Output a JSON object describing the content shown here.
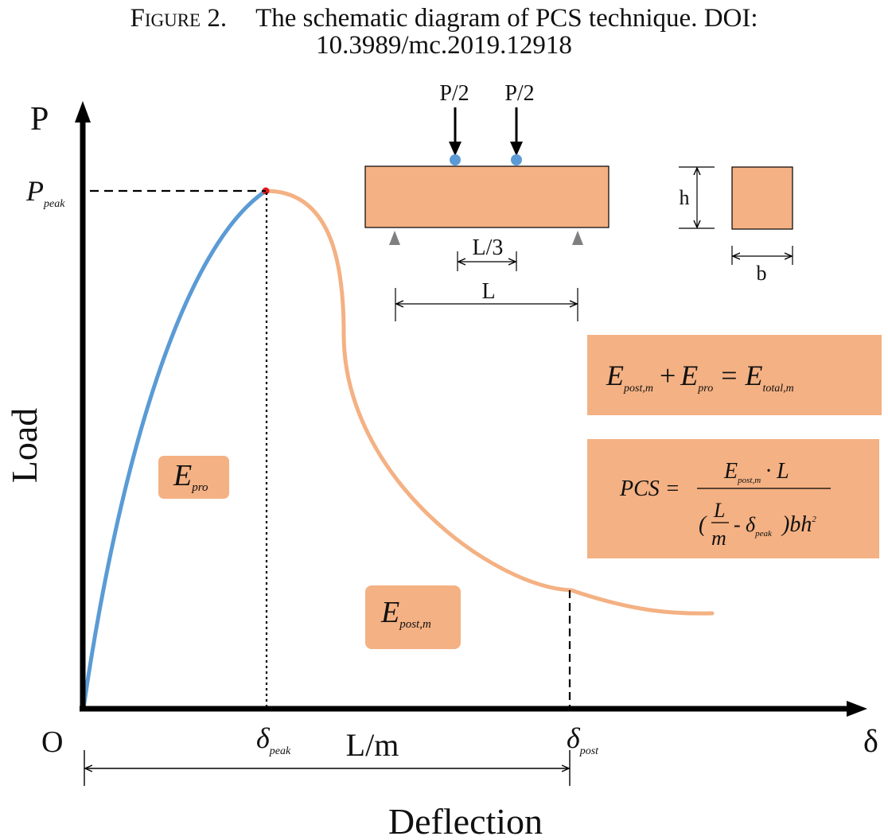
{
  "caption": {
    "label": "Figure 2.",
    "line1": "The schematic diagram of PCS technique. DOI:",
    "line2": "10.3989/mc.2019.12918"
  },
  "axes": {
    "y_symbol": "P",
    "y_label": "Load",
    "x_symbol": "δ",
    "x_label": "Deflection",
    "origin": "O"
  },
  "markers": {
    "p_peak": {
      "main": "P",
      "sub": "peak"
    },
    "delta_peak": {
      "main": "δ",
      "sub": "peak"
    },
    "delta_post": {
      "main": "δ",
      "sub": "post"
    },
    "span_label": "L/m"
  },
  "energy_boxes": {
    "pro": {
      "main": "E",
      "sub": "pro"
    },
    "post": {
      "main": "E",
      "sub": "post,m"
    }
  },
  "beam": {
    "load_left": "P/2",
    "load_right": "P/2",
    "third_span": "L/3",
    "span": "L",
    "height": "h",
    "width": "b"
  },
  "equations": {
    "sum": {
      "term1": "E",
      "term1_sub": "post,m",
      "plus": "+",
      "term2": "E",
      "term2_sub": "pro",
      "eq": "=",
      "term3": "E",
      "term3_sub": "total,m"
    },
    "pcs": {
      "lhs": "PCS =",
      "num_e": "E",
      "num_sub": "post,m",
      "num_rest": "· L",
      "den_open": "(",
      "den_L": "L",
      "den_m": "m",
      "den_minus": "-",
      "den_delta": "δ",
      "den_delta_sub": "peak",
      "den_close": ")bh",
      "den_exp": "2"
    }
  },
  "colors": {
    "pre_peak_curve": "#5b9bd5",
    "post_peak_curve": "#f4b183",
    "box_fill": "#f4b183",
    "peak_point": "#e31a1c",
    "load_point": "#5b9bd5",
    "axis": "#000000"
  }
}
